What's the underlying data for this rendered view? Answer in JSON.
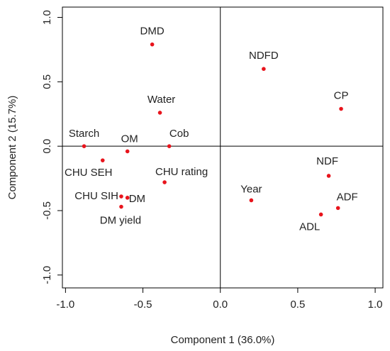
{
  "chart_data": {
    "type": "scatter",
    "xlabel": "Component 1 (36.0%)",
    "ylabel": "Component 2 (15.7%)",
    "xlim": [
      -1.02,
      1.05
    ],
    "ylim": [
      -1.1,
      1.08
    ],
    "xticks": [
      -1.0,
      -0.5,
      0.0,
      0.5,
      1.0
    ],
    "yticks": [
      -1.0,
      -0.5,
      0.0,
      0.5,
      1.0
    ],
    "xtick_labels": [
      "-1.0",
      "-0.5",
      "0.0",
      "0.5",
      "1.0"
    ],
    "ytick_labels": [
      "-1.0",
      "-0.5",
      "0.0",
      "0.5",
      "1.0"
    ],
    "reference_lines": {
      "x": 0,
      "y": 0
    },
    "grid": false,
    "point_color": "#e8141c",
    "points": [
      {
        "label": "DMD",
        "x": -0.44,
        "y": 0.79
      },
      {
        "label": "NDFD",
        "x": 0.28,
        "y": 0.6
      },
      {
        "label": "CP",
        "x": 0.78,
        "y": 0.29
      },
      {
        "label": "Water",
        "x": -0.39,
        "y": 0.26
      },
      {
        "label": "Starch",
        "x": -0.88,
        "y": 0.0
      },
      {
        "label": "OM",
        "x": -0.6,
        "y": -0.04
      },
      {
        "label": "Cob",
        "x": -0.33,
        "y": 0.0
      },
      {
        "label": "CHU SEH",
        "x": -0.76,
        "y": -0.11
      },
      {
        "label": "CHU rating",
        "x": -0.36,
        "y": -0.28
      },
      {
        "label": "NDF",
        "x": 0.7,
        "y": -0.23
      },
      {
        "label": "Year",
        "x": 0.2,
        "y": -0.42
      },
      {
        "label": "ADF",
        "x": 0.76,
        "y": -0.48
      },
      {
        "label": "ADL",
        "x": 0.65,
        "y": -0.53
      },
      {
        "label": "CHU SIH",
        "x": -0.64,
        "y": -0.39
      },
      {
        "label": "DM",
        "x": -0.6,
        "y": -0.4
      },
      {
        "label": "DM yield",
        "x": -0.64,
        "y": -0.47
      }
    ]
  }
}
